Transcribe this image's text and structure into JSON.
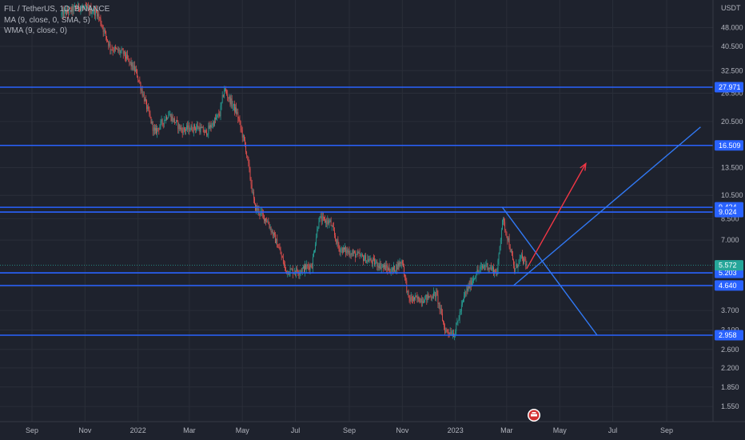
{
  "legend": {
    "symbol_line": "FIL / TetherUS, 1D, BINANCE",
    "ma_line": "MA (9, close, 0, SMA, 5)",
    "wma_line": "WMA (9, close, 0)"
  },
  "chart_data": {
    "type": "candlestick",
    "title": "FIL / TetherUS, 1D, BINANCE",
    "y_unit": "USDT",
    "y_scale": "log",
    "y_ticks": [
      "48.000",
      "40.500",
      "32.500",
      "26.500",
      "20.500",
      "13.500",
      "10.500",
      "8.500",
      "7.000",
      "4.600",
      "3.700",
      "3.100",
      "2.600",
      "2.200",
      "1.850",
      "1.550"
    ],
    "x_ticks": [
      "Sep",
      "Nov",
      "2022",
      "Mar",
      "May",
      "Jul",
      "Sep",
      "Nov",
      "2023",
      "Mar",
      "May",
      "Jul",
      "Sep"
    ],
    "price_path": [
      [
        "2021-10-05",
        54.0
      ],
      [
        "2021-10-25",
        58.0
      ],
      [
        "2021-11-15",
        55.0
      ],
      [
        "2021-11-30",
        40.0
      ],
      [
        "2021-12-15",
        38.0
      ],
      [
        "2021-12-30",
        32.0
      ],
      [
        "2022-01-10",
        24.0
      ],
      [
        "2022-01-20",
        18.5
      ],
      [
        "2022-02-05",
        22.0
      ],
      [
        "2022-02-20",
        19.0
      ],
      [
        "2022-03-10",
        19.5
      ],
      [
        "2022-03-20",
        18.5
      ],
      [
        "2022-04-05",
        22.0
      ],
      [
        "2022-04-10",
        27.5
      ],
      [
        "2022-04-25",
        22.0
      ],
      [
        "2022-05-05",
        16.0
      ],
      [
        "2022-05-15",
        9.5
      ],
      [
        "2022-05-30",
        8.3
      ],
      [
        "2022-06-12",
        6.5
      ],
      [
        "2022-06-20",
        5.3
      ],
      [
        "2022-07-05",
        5.3
      ],
      [
        "2022-07-20",
        5.6
      ],
      [
        "2022-07-28",
        8.5
      ],
      [
        "2022-08-10",
        8.2
      ],
      [
        "2022-08-20",
        6.5
      ],
      [
        "2022-09-05",
        6.2
      ],
      [
        "2022-09-20",
        5.9
      ],
      [
        "2022-10-05",
        5.6
      ],
      [
        "2022-10-20",
        5.3
      ],
      [
        "2022-11-01",
        5.8
      ],
      [
        "2022-11-08",
        4.1
      ],
      [
        "2022-11-25",
        4.1
      ],
      [
        "2022-12-10",
        4.3
      ],
      [
        "2022-12-20",
        3.1
      ],
      [
        "2022-12-31",
        3.0
      ],
      [
        "2023-01-12",
        4.3
      ],
      [
        "2023-01-25",
        5.2
      ],
      [
        "2023-02-05",
        5.6
      ],
      [
        "2023-02-18",
        5.2
      ],
      [
        "2023-02-24",
        8.5
      ],
      [
        "2023-03-03",
        7.0
      ],
      [
        "2023-03-10",
        5.3
      ],
      [
        "2023-03-17",
        6.0
      ],
      [
        "2023-03-24",
        5.572
      ]
    ],
    "horizontal_levels": [
      {
        "price": 27.971,
        "label": "27.971"
      },
      {
        "price": 16.509,
        "label": "16.509"
      },
      {
        "price": 9.424,
        "label": "9.424"
      },
      {
        "price": 9.024,
        "label": "9.024"
      },
      {
        "price": 5.203,
        "label": "5.203"
      },
      {
        "price": 4.64,
        "label": "4.640"
      },
      {
        "price": 2.958,
        "label": "2.958"
      }
    ],
    "last_price": {
      "price": 5.572,
      "label": "5.572"
    },
    "trendlines": [
      {
        "name": "descending",
        "from": [
          "2023-02-24",
          9.424
        ],
        "to": [
          "2023-06-13",
          2.958
        ]
      },
      {
        "name": "ascending",
        "from": [
          "2023-03-09",
          4.64
        ],
        "to": [
          "2023-10-10",
          19.5
        ]
      },
      {
        "name": "projection-arrow",
        "from": [
          "2023-03-24",
          5.4
        ],
        "to": [
          "2023-05-31",
          14.0
        ]
      }
    ],
    "colors": {
      "background": "#1e222d",
      "up": "#26a69a",
      "down": "#ef5350",
      "levels": "#2962ff",
      "trendlines": "#3179f5",
      "arrow": "#f23645",
      "last_price": "#26a69a"
    }
  }
}
